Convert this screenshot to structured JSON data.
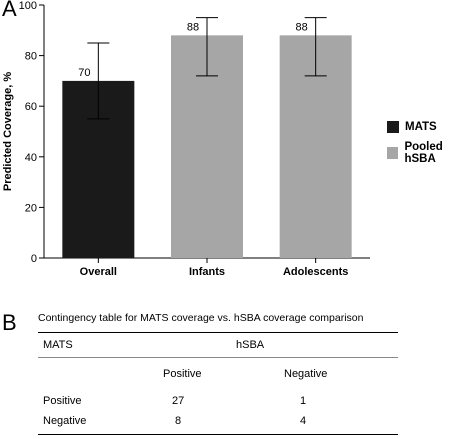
{
  "panel_labels": {
    "a": "A",
    "b": "B"
  },
  "chart_data": {
    "type": "bar",
    "ylabel": "Predicted Coverage, %",
    "xlabel": "",
    "ylim": [
      0,
      100
    ],
    "yticks": [
      0,
      20,
      40,
      60,
      80,
      100
    ],
    "grid": false,
    "legend_position": "right",
    "categories": [
      "Overall",
      "Infants",
      "Adolescents"
    ],
    "values": [
      70,
      88,
      88
    ],
    "value_labels": [
      "70",
      "88",
      "88"
    ],
    "error_low": [
      55,
      72,
      72
    ],
    "error_high": [
      85,
      95,
      95
    ],
    "bar_series": [
      "MATS",
      "Pooled hSBA",
      "Pooled hSBA"
    ],
    "series": [
      {
        "name": "MATS",
        "color": "#1a1a1a"
      },
      {
        "name": "Pooled hSBA",
        "color": "#a6a6a6"
      }
    ]
  },
  "table": {
    "title": "Contingency table for MATS coverage vs. hSBA coverage comparison",
    "row_header": "MATS",
    "col_group": "hSBA",
    "col_labels": [
      "Positive",
      "Negative"
    ],
    "rows": [
      {
        "label": "Positive",
        "values": [
          "27",
          "1"
        ]
      },
      {
        "label": "Negative",
        "values": [
          "8",
          "4"
        ]
      }
    ]
  }
}
